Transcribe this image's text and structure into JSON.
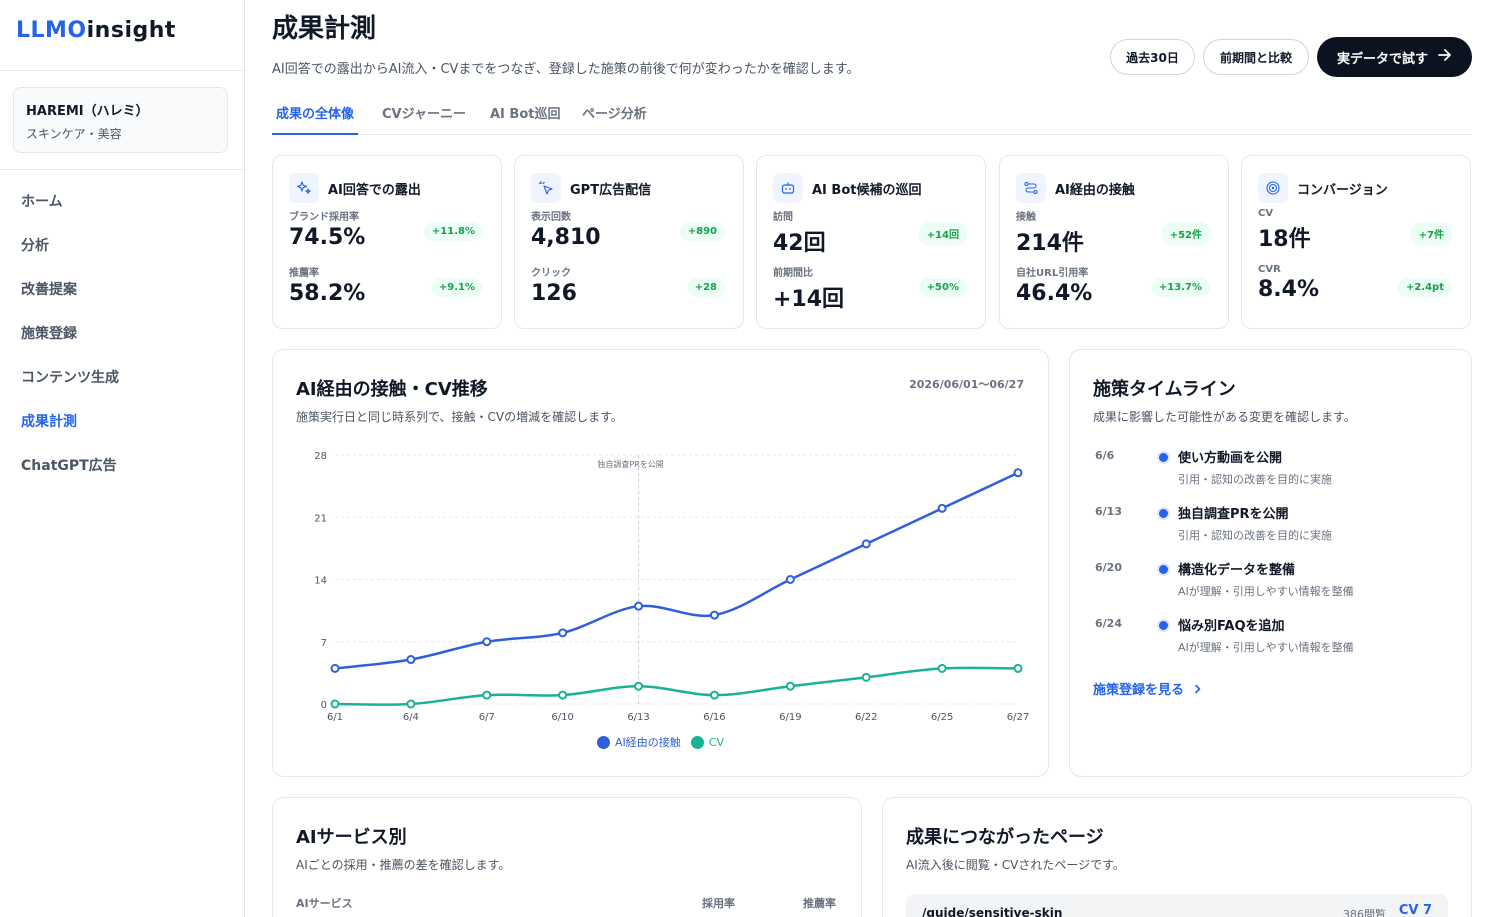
{
  "app": {
    "logo_part1": "LLMO",
    "logo_part2": "insight"
  },
  "workspace": {
    "name": "HAREMI（ハレミ）",
    "category": "スキンケア・美容"
  },
  "sidebar": {
    "items": [
      {
        "label": "ホーム"
      },
      {
        "label": "分析"
      },
      {
        "label": "改善提案"
      },
      {
        "label": "施策登録"
      },
      {
        "label": "コンテンツ生成"
      },
      {
        "label": "成果計測",
        "active": true
      },
      {
        "label": "ChatGPT広告"
      }
    ]
  },
  "header": {
    "title": "成果計測",
    "description": "AI回答での露出からAI流入・CVまでをつなぎ、登録した施策の前後で何が変わったかを確認します。",
    "period_button": "過去30日",
    "compare_button": "前期間と比較",
    "primary_button": "実データで試す"
  },
  "tabs": [
    {
      "label": "成果の全体像",
      "active": true
    },
    {
      "label": "CVジャーニー"
    },
    {
      "label": "AI Bot巡回"
    },
    {
      "label": "ページ分析"
    }
  ],
  "kpis": [
    {
      "title": "AI回答での露出",
      "icon": "sparkles-icon",
      "metrics": [
        {
          "label": "ブランド採用率",
          "value": "74.5%",
          "delta": "+11.8%"
        },
        {
          "label": "推薦率",
          "value": "58.2%",
          "delta": "+9.1%"
        }
      ]
    },
    {
      "title": "GPT広告配信",
      "icon": "cursor-click-icon",
      "metrics": [
        {
          "label": "表示回数",
          "value": "4,810",
          "delta": "+890"
        },
        {
          "label": "クリック",
          "value": "126",
          "delta": "+28"
        }
      ]
    },
    {
      "title": "AI Bot候補の巡回",
      "icon": "robot-icon",
      "metrics": [
        {
          "label": "訪問",
          "value": "42回",
          "delta": "+14回"
        },
        {
          "label": "前期間比",
          "value": "+14回",
          "delta": "+50%"
        }
      ]
    },
    {
      "title": "AI経由の接触",
      "icon": "route-icon",
      "metrics": [
        {
          "label": "接触",
          "value": "214件",
          "delta": "+52件"
        },
        {
          "label": "自社URL引用率",
          "value": "46.4%",
          "delta": "+13.7%"
        }
      ]
    },
    {
      "title": "コンバージョン",
      "icon": "target-icon",
      "metrics": [
        {
          "label": "CV",
          "value": "18件",
          "delta": "+7件"
        },
        {
          "label": "CVR",
          "value": "8.4%",
          "delta": "+2.4pt"
        }
      ]
    }
  ],
  "trend_panel": {
    "title": "AI経由の接触・CV推移",
    "subtitle": "施策実行日と同じ時系列で、接触・CVの増減を確認します。",
    "date_range": "2026/06/01〜06/27"
  },
  "chart_data": {
    "type": "line",
    "x": [
      "6/1",
      "6/4",
      "6/7",
      "6/10",
      "6/13",
      "6/16",
      "6/19",
      "6/22",
      "6/25",
      "6/27"
    ],
    "ylim": [
      0,
      28
    ],
    "yticks": [
      0,
      7,
      14,
      21,
      28
    ],
    "grid": true,
    "legend_position": "bottom-center",
    "series": [
      {
        "name": "AI経由の接触",
        "color": "#2f5fdc",
        "values": [
          4,
          5,
          7,
          8,
          11,
          10,
          14,
          18,
          22,
          26
        ]
      },
      {
        "name": "CV",
        "color": "#19b394",
        "values": [
          0,
          0,
          1,
          1,
          2,
          1,
          2,
          3,
          4,
          4
        ]
      }
    ],
    "annotations": [
      {
        "x": "6/13",
        "label": "独自調査PRを公開"
      }
    ]
  },
  "timeline_panel": {
    "title": "施策タイムライン",
    "subtitle": "成果に影響した可能性がある変更を確認します。",
    "items": [
      {
        "date": "6/6",
        "title": "使い方動画を公開",
        "desc": "引用・認知の改善を目的に実施"
      },
      {
        "date": "6/13",
        "title": "独自調査PRを公開",
        "desc": "引用・認知の改善を目的に実施"
      },
      {
        "date": "6/20",
        "title": "構造化データを整備",
        "desc": "AIが理解・引用しやすい情報を整備"
      },
      {
        "date": "6/24",
        "title": "悩み別FAQを追加",
        "desc": "AIが理解・引用しやすい情報を整備"
      }
    ],
    "link": "施策登録を見る"
  },
  "service_panel": {
    "title": "AIサービス別",
    "subtitle": "AIごとの採用・推薦の差を確認します。",
    "columns": [
      "AIサービス",
      "採用率",
      "推薦率"
    ]
  },
  "pages_panel": {
    "title": "成果につながったページ",
    "subtitle": "AI流入後に閲覧・CVされたページです。",
    "rows": [
      {
        "path": "/guide/sensitive-skin",
        "views": "386閲覧",
        "cv": "CV 7"
      }
    ]
  },
  "colors": {
    "accent": "#2563eb",
    "primary_dark": "#0b1220",
    "success": "#16a34a",
    "teal": "#19b394"
  }
}
